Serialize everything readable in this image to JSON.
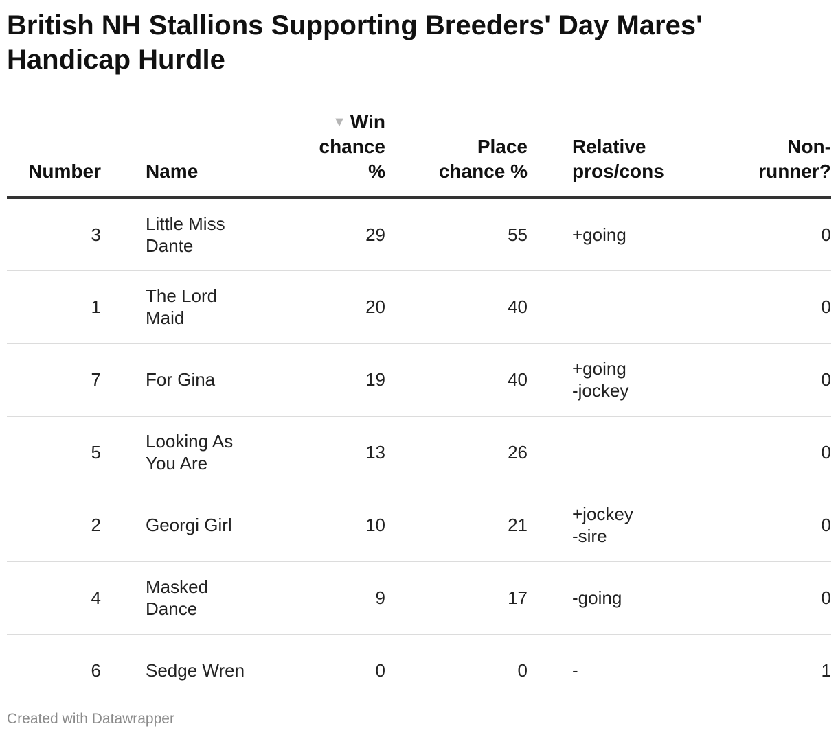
{
  "title": "British NH Stallions Supporting Breeders' Day Mares' Handicap Hurdle",
  "chart_data": {
    "type": "table",
    "columns": [
      {
        "key": "number",
        "label": "Number"
      },
      {
        "key": "name",
        "label": "Name"
      },
      {
        "key": "win",
        "label": "Win chance %",
        "sorted": "descending"
      },
      {
        "key": "place",
        "label": "Place chance %"
      },
      {
        "key": "pros",
        "label": "Relative pros/cons"
      },
      {
        "key": "nr",
        "label": "Non-runner?"
      }
    ],
    "rows": [
      {
        "number": "3",
        "name": "Little Miss Dante",
        "win": "29",
        "place": "55",
        "pros": "+going",
        "nr": "0"
      },
      {
        "number": "1",
        "name": "The Lord Maid",
        "win": "20",
        "place": "40",
        "pros": "",
        "nr": "0"
      },
      {
        "number": "7",
        "name": "For Gina",
        "win": "19",
        "place": "40",
        "pros": "+going\n-jockey",
        "nr": "0"
      },
      {
        "number": "5",
        "name": "Looking As You Are",
        "win": "13",
        "place": "26",
        "pros": "",
        "nr": "0"
      },
      {
        "number": "2",
        "name": "Georgi Girl",
        "win": "10",
        "place": "21",
        "pros": "+jockey\n-sire",
        "nr": "0"
      },
      {
        "number": "4",
        "name": "Masked Dance",
        "win": "9",
        "place": "17",
        "pros": "-going",
        "nr": "0"
      },
      {
        "number": "6",
        "name": "Sedge Wren",
        "win": "0",
        "place": "0",
        "pros": "-",
        "nr": "1"
      }
    ]
  },
  "sort_icon": "triangle-down-icon",
  "footer": "Created with Datawrapper"
}
